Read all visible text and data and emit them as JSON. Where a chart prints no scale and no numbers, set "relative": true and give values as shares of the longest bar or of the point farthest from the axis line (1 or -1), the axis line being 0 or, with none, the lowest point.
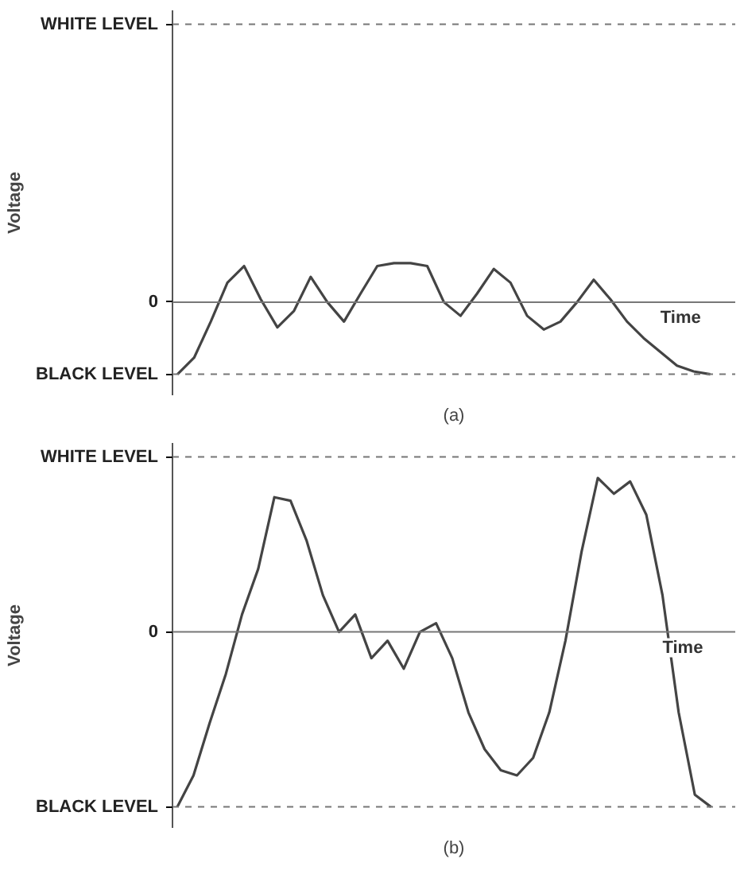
{
  "chart_data": [
    {
      "type": "line",
      "ylabel": "Voltage",
      "annotations": [
        "Time",
        "(a)"
      ],
      "relative": true,
      "categories": [
        null,
        null,
        null,
        null,
        null,
        null,
        null,
        null,
        null,
        null,
        null,
        null,
        null,
        null,
        null,
        null,
        null,
        null,
        null,
        null,
        null,
        null,
        null,
        null,
        null,
        null,
        null,
        null,
        null,
        null,
        null,
        null,
        null
      ],
      "series": [
        {
          "color": "#444444",
          "values": [
            -1,
            -0.77,
            -0.27,
            0.27,
            0.5,
            0.04,
            -0.35,
            -0.12,
            0.35,
            0,
            -0.27,
            0.12,
            0.5,
            0.54,
            0.54,
            0.5,
            0,
            -0.19,
            0.12,
            0.46,
            0.27,
            -0.19,
            -0.38,
            -0.27,
            0,
            0.31,
            0.04,
            -0.27,
            -0.5,
            -0.69,
            -0.88,
            -0.96,
            -1
          ]
        }
      ],
      "ref_lines": [
        {
          "axis": "y",
          "value": 3.85,
          "label": "WHITE LEVEL",
          "color": "#777777",
          "line_style": "dashed"
        },
        {
          "axis": "y",
          "value": 0,
          "label": "0",
          "color": "#777777",
          "line_style": "solid"
        },
        {
          "axis": "y",
          "value": -1,
          "label": "BLACK LEVEL",
          "color": "#777777",
          "line_style": "dashed"
        }
      ],
      "grid": false
    },
    {
      "type": "line",
      "ylabel": "Voltage",
      "annotations": [
        "Time",
        "(b)"
      ],
      "relative": true,
      "categories": [
        null,
        null,
        null,
        null,
        null,
        null,
        null,
        null,
        null,
        null,
        null,
        null,
        null,
        null,
        null,
        null,
        null,
        null,
        null,
        null,
        null,
        null,
        null,
        null,
        null,
        null,
        null,
        null,
        null,
        null,
        null,
        null,
        null,
        null
      ],
      "series": [
        {
          "color": "#444444",
          "values": [
            -1,
            -0.82,
            -0.52,
            -0.24,
            0.1,
            0.36,
            0.77,
            0.75,
            0.52,
            0.21,
            0,
            0.1,
            -0.15,
            -0.05,
            -0.21,
            0,
            0.05,
            -0.15,
            -0.46,
            -0.67,
            -0.79,
            -0.82,
            -0.72,
            -0.46,
            -0.05,
            0.46,
            0.88,
            0.79,
            0.86,
            0.67,
            0.21,
            -0.46,
            -0.93,
            -1
          ]
        }
      ],
      "ref_lines": [
        {
          "axis": "y",
          "value": 1,
          "label": "WHITE LEVEL",
          "color": "#777777",
          "line_style": "dashed"
        },
        {
          "axis": "y",
          "value": 0,
          "label": "0",
          "color": "#777777",
          "line_style": "solid"
        },
        {
          "axis": "y",
          "value": -1,
          "label": "BLACK LEVEL",
          "color": "#777777",
          "line_style": "dashed"
        }
      ],
      "grid": false
    }
  ]
}
